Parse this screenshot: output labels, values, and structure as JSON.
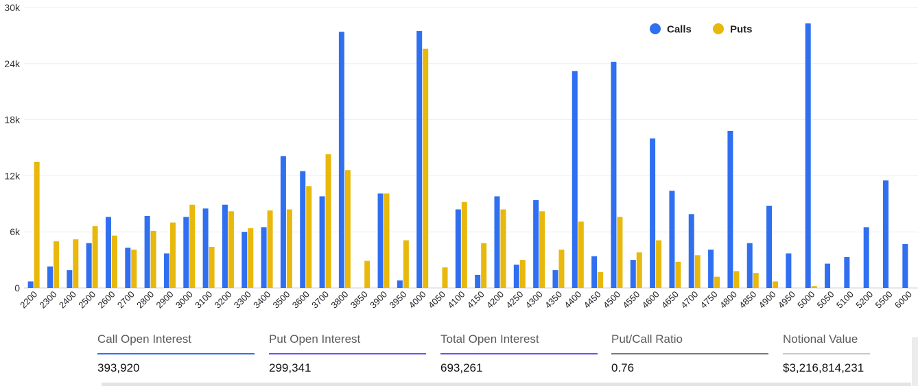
{
  "chart_data": {
    "type": "bar",
    "categories": [
      "2200",
      "2300",
      "2400",
      "2500",
      "2600",
      "2700",
      "2800",
      "2900",
      "3000",
      "3100",
      "3200",
      "3300",
      "3400",
      "3500",
      "3600",
      "3700",
      "3800",
      "3850",
      "3900",
      "3950",
      "4000",
      "4050",
      "4100",
      "4150",
      "4200",
      "4250",
      "4300",
      "4350",
      "4400",
      "4450",
      "4500",
      "4550",
      "4600",
      "4650",
      "4700",
      "4750",
      "4800",
      "4850",
      "4900",
      "4950",
      "5000",
      "5050",
      "5100",
      "5200",
      "5500",
      "6000"
    ],
    "series": [
      {
        "name": "Calls",
        "color": "#2f6ff0",
        "values": [
          700,
          2300,
          1900,
          4800,
          7600,
          4300,
          7700,
          3700,
          7600,
          8500,
          8900,
          6000,
          6500,
          14100,
          12500,
          9800,
          27400,
          0,
          10100,
          800,
          27500,
          0,
          8400,
          1400,
          9800,
          2500,
          9400,
          1900,
          23200,
          3400,
          24200,
          3000,
          16000,
          10400,
          7900,
          4100,
          16800,
          4800,
          8800,
          3700,
          28300,
          2600,
          3300,
          6500,
          11500,
          4700
        ]
      },
      {
        "name": "Puts",
        "color": "#e8b80c",
        "values": [
          13500,
          5000,
          5200,
          6600,
          5600,
          4100,
          6100,
          7000,
          8900,
          4400,
          8200,
          6400,
          8300,
          8400,
          10900,
          14300,
          12600,
          2900,
          10100,
          5100,
          25600,
          2200,
          9200,
          4800,
          8400,
          3000,
          8200,
          4100,
          7100,
          1700,
          7600,
          3800,
          5100,
          2800,
          3500,
          1200,
          1800,
          1600,
          700,
          0,
          200,
          0,
          0,
          0,
          0,
          0
        ]
      }
    ],
    "yticks": [
      "0",
      "6k",
      "12k",
      "18k",
      "24k",
      "30k"
    ],
    "ylim": [
      0,
      30000
    ],
    "legend_position": "top-right",
    "grid": true
  },
  "stats": [
    {
      "label": "Call Open Interest",
      "value": "393,920",
      "color": "#2f6ff0"
    },
    {
      "label": "Put Open Interest",
      "value": "299,341",
      "color": "#6b4ff0"
    },
    {
      "label": "Total Open Interest",
      "value": "693,261",
      "color": "#6b4ff0"
    },
    {
      "label": "Put/Call Ratio",
      "value": "0.76",
      "color": "#7a7a7a"
    },
    {
      "label": "Notional Value",
      "value": "$3,216,814,231",
      "color": "#c8c8c8"
    }
  ]
}
